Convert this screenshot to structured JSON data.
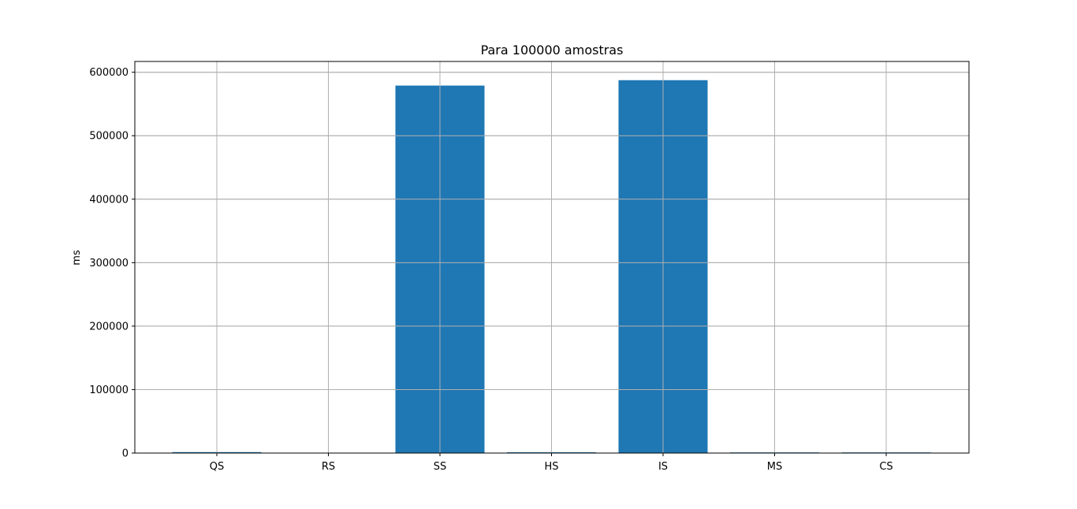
{
  "chart_data": {
    "type": "bar",
    "title": "Para 100000 amostras",
    "xlabel": "",
    "ylabel": "ms",
    "categories": [
      "QS",
      "RS",
      "SS",
      "HS",
      "IS",
      "MS",
      "CS"
    ],
    "values": [
      1500,
      500,
      579000,
      1200,
      587500,
      1000,
      1000
    ],
    "ylim": [
      0,
      617000
    ],
    "yticks": [
      0,
      100000,
      200000,
      300000,
      400000,
      500000,
      600000
    ],
    "ytick_labels": [
      "0",
      "100000",
      "200000",
      "300000",
      "400000",
      "500000",
      "600000"
    ],
    "grid": true,
    "bar_color": "#1f77b4",
    "grid_color": "#b0b0b0"
  }
}
